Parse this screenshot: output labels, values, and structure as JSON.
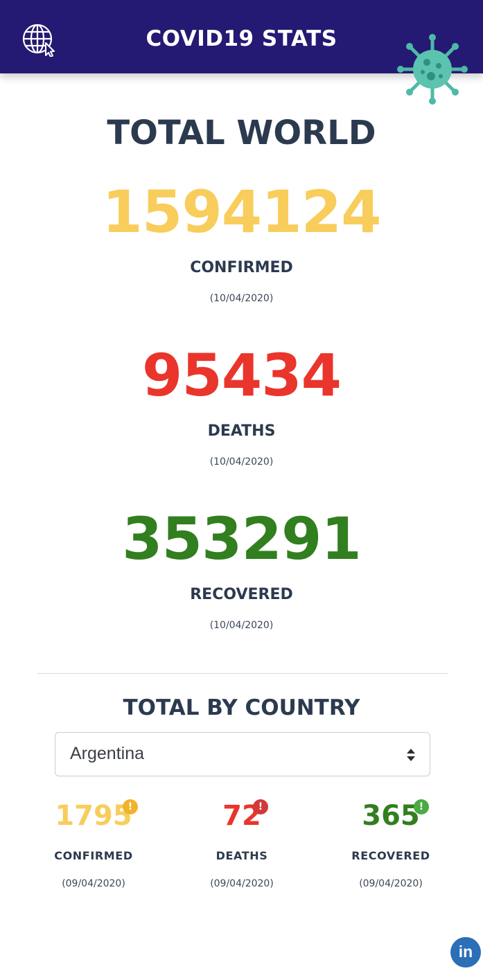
{
  "header": {
    "title": "COVID19 STATS",
    "globe_icon": "globe-cursor-icon",
    "virus_icon": "virus-icon"
  },
  "world": {
    "title": "TOTAL WORLD",
    "confirmed": {
      "value": "1594124",
      "label": "CONFIRMED",
      "date": "(10/04/2020)",
      "color": "#f8cd5b"
    },
    "deaths": {
      "value": "95434",
      "label": "DEATHS",
      "date": "(10/04/2020)",
      "color": "#e9352b"
    },
    "recovered": {
      "value": "353291",
      "label": "RECOVERED",
      "date": "(10/04/2020)",
      "color": "#317f1f"
    }
  },
  "country": {
    "title": "TOTAL BY COUNTRY",
    "selected": "Argentina",
    "confirmed": {
      "value": "1795",
      "label": "CONFIRMED",
      "date": "(09/04/2020)",
      "badge": "!",
      "badge_color": "#f2b32a"
    },
    "deaths": {
      "value": "72",
      "label": "DEATHS",
      "date": "(09/04/2020)",
      "badge": "!",
      "badge_color": "#d03a3a"
    },
    "recovered": {
      "value": "365",
      "label": "RECOVERED",
      "date": "(09/04/2020)",
      "badge": "!",
      "badge_color": "#4caa44"
    }
  },
  "footer": {
    "linkedin_label": "in"
  },
  "colors": {
    "header_bg": "#241a73",
    "text_dark": "#2c3a4f"
  }
}
